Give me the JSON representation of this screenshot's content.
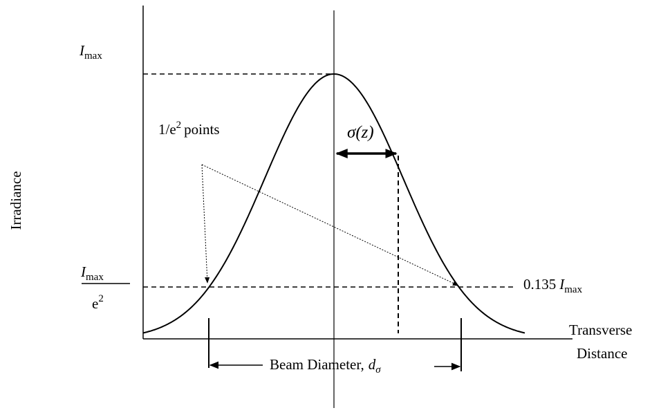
{
  "axis_label": "Irradiance",
  "x_axis_label": [
    "Transverse",
    "Distance"
  ],
  "peak_label": {
    "symbol": "I",
    "subscript": "max"
  },
  "threshold_label": {
    "numerator": {
      "symbol": "I",
      "subscript": "max"
    },
    "denominator": {
      "base": "e",
      "exponent": "2"
    }
  },
  "points_label": {
    "base": "1/e",
    "exponent": "2",
    "text": "points"
  },
  "sigma_label": "σ(z)",
  "level_label": {
    "value": "0.135",
    "symbol": "I",
    "subscript": "max"
  },
  "diameter_label": {
    "text": "Beam Diameter,",
    "symbol": "d",
    "subscript": "σ"
  }
}
